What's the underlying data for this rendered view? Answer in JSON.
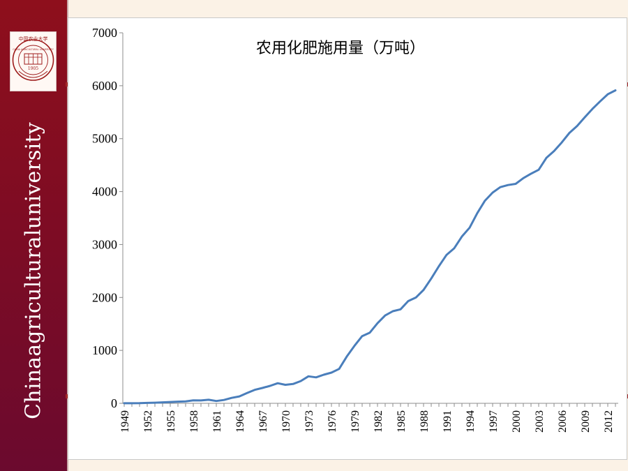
{
  "slide": {
    "sidebar_text": "Chinaagriculturaluniversity",
    "logo": {
      "name_cn": "中国农业大学",
      "name_en": "CHINA AGRICULTURAL UNIVERSITY",
      "year": "1905"
    },
    "colors": {
      "sidebar": "#8e0f1c",
      "background": "#fbf2e6",
      "line": "#4a7ebb"
    }
  },
  "chart_data": {
    "type": "line",
    "title": "农用化肥施用量（万吨）",
    "xlabel": "",
    "ylabel": "",
    "ylim": [
      0,
      7000
    ],
    "yticks": [
      0,
      1000,
      2000,
      3000,
      4000,
      5000,
      6000,
      7000
    ],
    "xtick_labels": [
      "1949",
      "1952",
      "1955",
      "1958",
      "1961",
      "1964",
      "1967",
      "1970",
      "1973",
      "1976",
      "1979",
      "1982",
      "1985",
      "1988",
      "1991",
      "1994",
      "1997",
      "2000",
      "2003",
      "2006",
      "2009",
      "2012"
    ],
    "grid": false,
    "legend": "none",
    "series": [
      {
        "x": [
          1949,
          1950,
          1951,
          1952,
          1953,
          1954,
          1955,
          1956,
          1957,
          1958,
          1959,
          1960,
          1961,
          1962,
          1963,
          1964,
          1965,
          1966,
          1967,
          1968,
          1969,
          1970,
          1971,
          1972,
          1973,
          1974,
          1975,
          1976,
          1977,
          1978,
          1979,
          1980,
          1981,
          1982,
          1983,
          1984,
          1985,
          1986,
          1987,
          1988,
          1989,
          1990,
          1991,
          1992,
          1993,
          1994,
          1995,
          1996,
          1997,
          1998,
          1999,
          2000,
          2001,
          2002,
          2003,
          2004,
          2005,
          2006,
          2007,
          2008,
          2009,
          2010,
          2011,
          2012,
          2013
        ],
        "values": [
          1,
          1,
          3,
          8,
          12,
          18,
          25,
          32,
          37,
          55,
          54,
          67,
          44,
          63,
          103,
          130,
          194,
          255,
          290,
          330,
          380,
          350,
          365,
          420,
          510,
          490,
          540,
          580,
          650,
          884,
          1086,
          1269,
          1335,
          1513,
          1660,
          1740,
          1776,
          1931,
          1999,
          2142,
          2357,
          2590,
          2805,
          2930,
          3152,
          3318,
          3594,
          3828,
          3981,
          4084,
          4124,
          4146,
          4254,
          4339,
          4412,
          4637,
          4766,
          4928,
          5108,
          5239,
          5404,
          5562,
          5704,
          5839,
          5912
        ]
      }
    ]
  }
}
